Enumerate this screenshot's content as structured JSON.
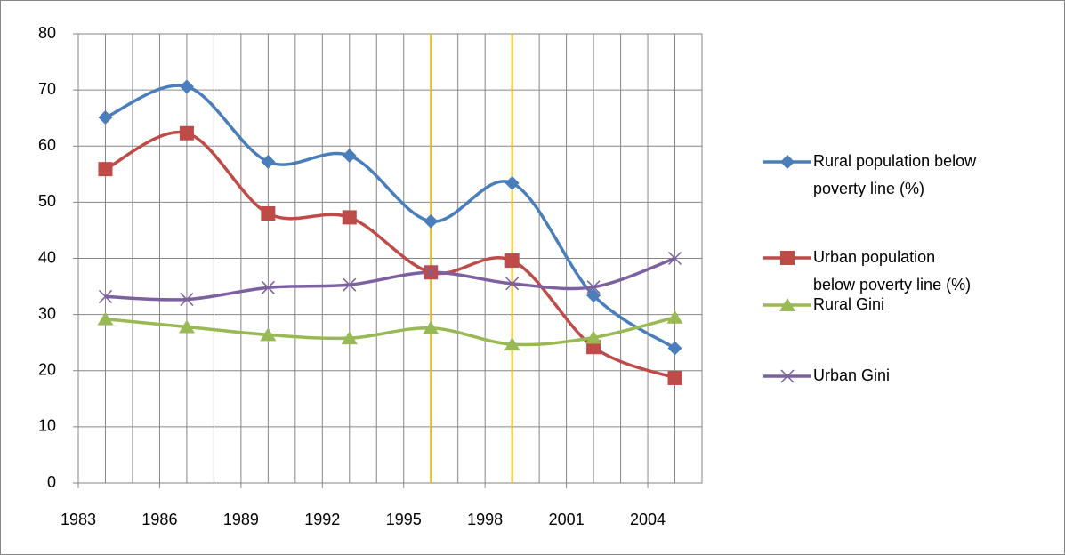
{
  "chart_data": {
    "type": "line",
    "smooth": true,
    "x": [
      1984,
      1987,
      1990,
      1993,
      1996,
      1999,
      2002,
      2005
    ],
    "series": [
      {
        "name": "Rural population below poverty line (%)",
        "color": "#4a7ebb",
        "marker": "diamond",
        "values": [
          65.1,
          70.6,
          57.2,
          58.3,
          46.6,
          53.4,
          33.4,
          24.0
        ]
      },
      {
        "name": "Urban population below poverty line (%)",
        "color": "#be4b48",
        "marker": "square",
        "values": [
          55.9,
          62.3,
          48.0,
          47.3,
          37.5,
          39.6,
          24.2,
          18.7
        ]
      },
      {
        "name": "Rural Gini",
        "color": "#98b954",
        "marker": "triangle",
        "values": [
          29.2,
          27.8,
          26.4,
          25.8,
          27.6,
          24.7,
          25.9,
          29.5
        ]
      },
      {
        "name": "Urban Gini",
        "color": "#7d60a0",
        "marker": "x",
        "values": [
          33.2,
          32.7,
          34.8,
          35.3,
          37.5,
          35.5,
          34.9,
          40.0
        ]
      }
    ],
    "xlim": [
      1983,
      2006
    ],
    "xticks": [
      1983,
      1986,
      1989,
      1992,
      1995,
      1998,
      2001,
      2004
    ],
    "ylim": [
      0,
      80
    ],
    "yticks": [
      0,
      10,
      20,
      30,
      40,
      50,
      60,
      70,
      80
    ],
    "grid": true,
    "legend": "right",
    "reference_lines": [
      1996,
      1999
    ],
    "reference_color": "#f5b800"
  }
}
